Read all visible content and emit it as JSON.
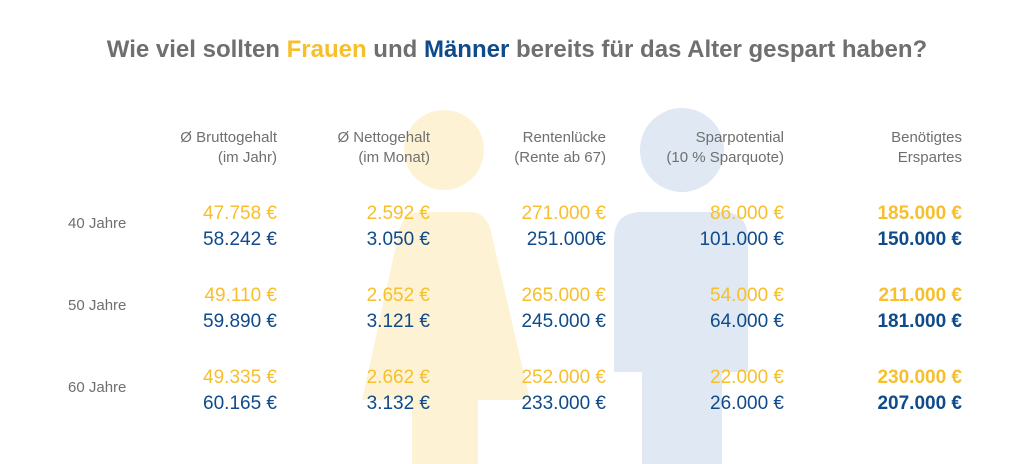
{
  "title": {
    "prefix": "Wie viel sollten ",
    "women": "Frauen",
    "middle": " und ",
    "men": "Männer",
    "suffix": " bereits für das Alter gespart haben?"
  },
  "colors": {
    "women": "#f7bf2b",
    "men": "#0f4a8a",
    "text": "#6f6f6f",
    "women_silhouette": "#fdf3d4",
    "men_silhouette": "#dfe8f3"
  },
  "icons": [
    "woman-silhouette-icon",
    "man-silhouette-icon"
  ],
  "columns": [
    {
      "line1": "Ø Bruttogehalt",
      "line2": "(im Jahr)"
    },
    {
      "line1": "Ø Nettogehalt",
      "line2": "(im Monat)"
    },
    {
      "line1": "Rentenlücke",
      "line2": "(Rente ab 67)"
    },
    {
      "line1": "Sparpotential",
      "line2": "(10 % Sparquote)"
    },
    {
      "line1": "Benötigtes",
      "line2": "Erspartes"
    }
  ],
  "rows": [
    {
      "age": "40 Jahre",
      "women": [
        "47.758 €",
        "2.592 €",
        "271.000 €",
        "86.000 €",
        "185.000 €"
      ],
      "men": [
        "58.242 €",
        "3.050 €",
        "251.000€",
        "101.000 €",
        "150.000 €"
      ]
    },
    {
      "age": "50 Jahre",
      "women": [
        "49.110 €",
        "2.652 €",
        "265.000 €",
        "54.000 €",
        "211.000 €"
      ],
      "men": [
        "59.890 €",
        "3.121 €",
        "245.000 €",
        "64.000 €",
        "181.000 €"
      ]
    },
    {
      "age": "60 Jahre",
      "women": [
        "49.335 €",
        "2.662 €",
        "252.000 €",
        "22.000 €",
        "230.000 €"
      ],
      "men": [
        "60.165 €",
        "3.132 €",
        "233.000 €",
        "26.000 €",
        "207.000 €"
      ]
    }
  ],
  "chart_data": {
    "type": "table",
    "title": "Wie viel sollten Frauen und Männer bereits für das Alter gespart haben?",
    "columns": [
      "Ø Bruttogehalt (im Jahr)",
      "Ø Nettogehalt (im Monat)",
      "Rentenlücke (Rente ab 67)",
      "Sparpotential (10 % Sparquote)",
      "Benötigtes Erspartes"
    ],
    "rows": [
      "40 Jahre",
      "50 Jahre",
      "60 Jahre"
    ],
    "series": [
      {
        "name": "Frauen",
        "values": [
          [
            47758,
            2592,
            271000,
            86000,
            185000
          ],
          [
            49110,
            2652,
            265000,
            54000,
            211000
          ],
          [
            49335,
            2662,
            252000,
            22000,
            230000
          ]
        ]
      },
      {
        "name": "Männer",
        "values": [
          [
            58242,
            3050,
            251000,
            101000,
            150000
          ],
          [
            59890,
            3121,
            245000,
            64000,
            181000
          ],
          [
            60165,
            3132,
            233000,
            26000,
            207000
          ]
        ]
      }
    ],
    "unit": "€"
  }
}
